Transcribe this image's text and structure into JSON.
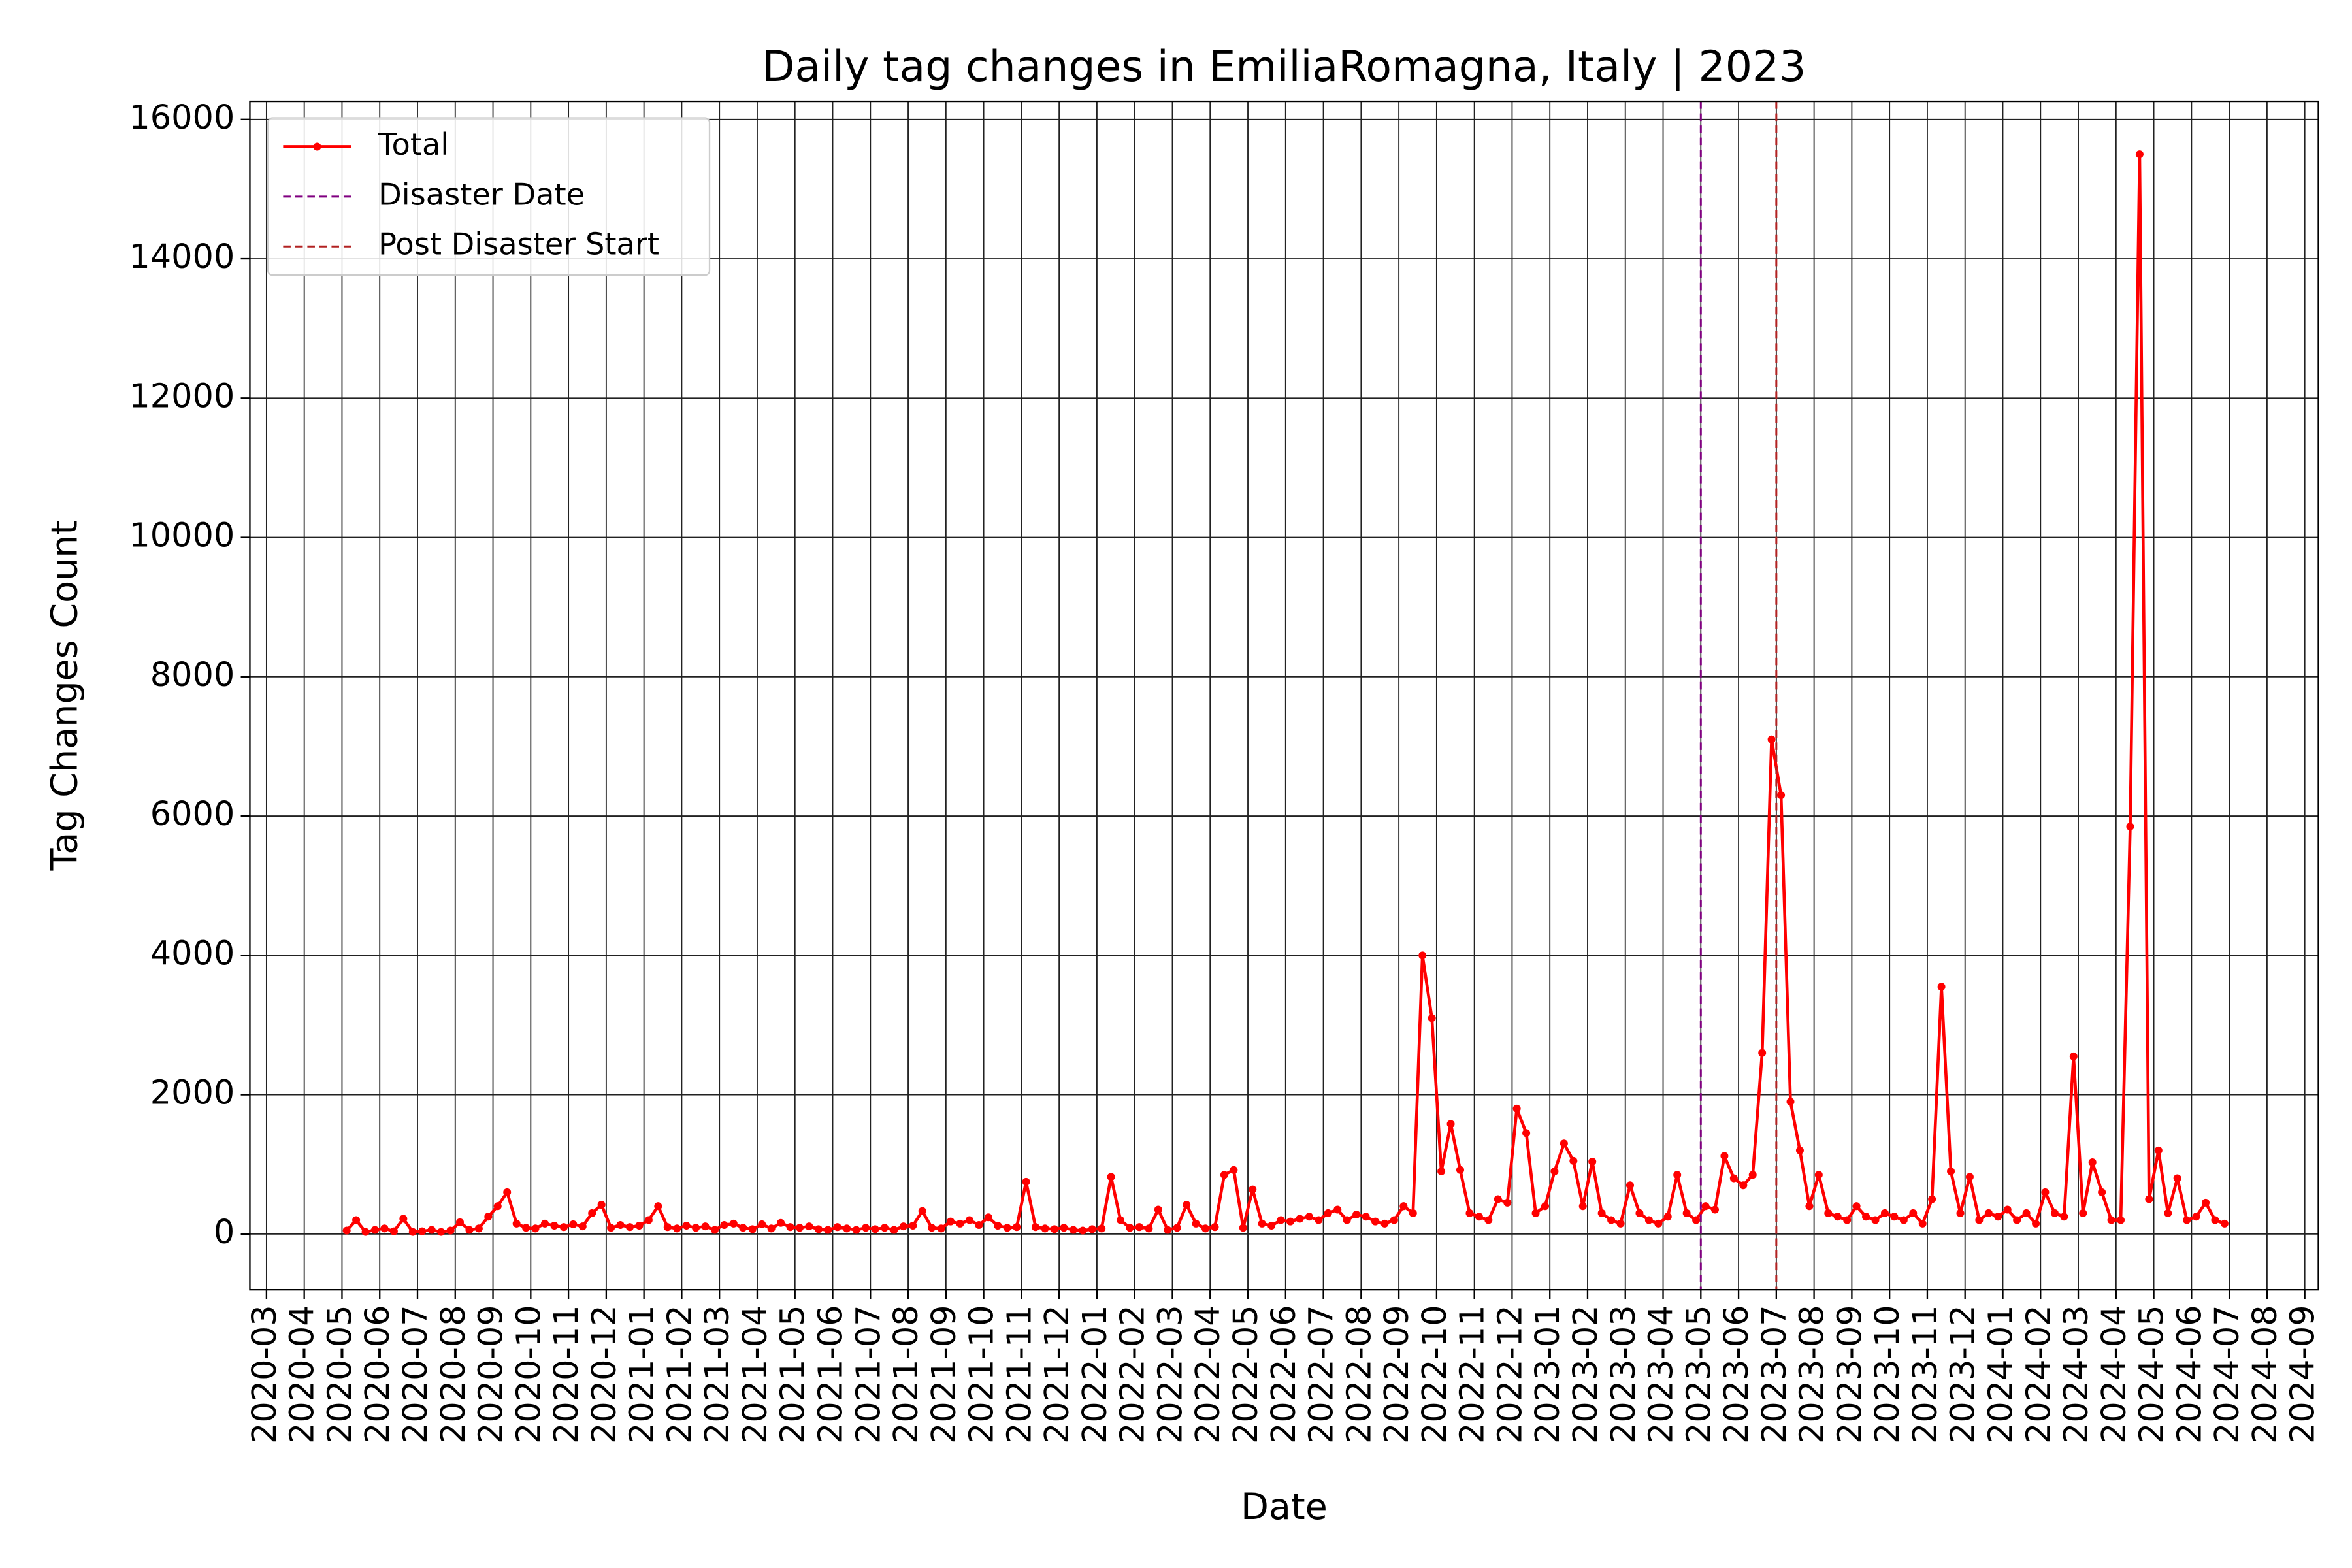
{
  "chart_data": {
    "type": "line",
    "title": "Daily tag changes in EmiliaRomagna, Italy | 2023",
    "x_label": "Date",
    "y_label": "Tag Changes Count",
    "x": [
      "2020-05",
      "2020-06",
      "2020-07",
      "2020-08",
      "2020-09",
      "2020-10",
      "2020-11",
      "2020-12",
      "2021-01",
      "2021-02",
      "2021-03",
      "2021-04",
      "2021-05",
      "2021-06",
      "2021-07",
      "2021-08",
      "2021-09",
      "2021-10",
      "2021-11",
      "2021-12",
      "2022-01",
      "2022-02",
      "2022-03",
      "2022-04",
      "2022-05",
      "2022-06",
      "2022-07",
      "2022-08",
      "2022-09",
      "2022-10",
      "2022-11",
      "2022-12",
      "2023-01",
      "2023-02",
      "2023-03",
      "2023-04",
      "2023-05",
      "2023-06",
      "2023-07",
      "2023-08",
      "2023-09",
      "2023-10",
      "2023-11",
      "2023-12",
      "2024-01",
      "2024-02",
      "2024-03",
      "2024-04",
      "2024-05",
      "2024-06"
    ],
    "series": [
      {
        "name": "Total",
        "color": "#ff0000",
        "values": [
          [
            50,
            200,
            30,
            60
          ],
          [
            80,
            40,
            220,
            30
          ],
          [
            40,
            60,
            30,
            50
          ],
          [
            170,
            60,
            80,
            250
          ],
          [
            400,
            600,
            150,
            90
          ],
          [
            80,
            150,
            120,
            100
          ],
          [
            140,
            110,
            300,
            420
          ],
          [
            90,
            130,
            100,
            120
          ],
          [
            200,
            400,
            100,
            80
          ],
          [
            120,
            90,
            110,
            60
          ],
          [
            130,
            150,
            90,
            70
          ],
          [
            140,
            80,
            160,
            100
          ],
          [
            90,
            110,
            70,
            60
          ],
          [
            100,
            80,
            60,
            90
          ],
          [
            70,
            90,
            60,
            110
          ],
          [
            120,
            330,
            90,
            80
          ],
          [
            180,
            150,
            200,
            130
          ],
          [
            240,
            120,
            90,
            100
          ],
          [
            750,
            100,
            80,
            70
          ],
          [
            90,
            60,
            50,
            70
          ],
          [
            80,
            820,
            200,
            90
          ],
          [
            100,
            80,
            350,
            60
          ],
          [
            90,
            420,
            150,
            80
          ],
          [
            100,
            850,
            920,
            90
          ],
          [
            640,
            150,
            120,
            200
          ],
          [
            180,
            220,
            250,
            200
          ],
          [
            300,
            350,
            200,
            280
          ],
          [
            250,
            180,
            150,
            200
          ],
          [
            400,
            300,
            4000,
            3100
          ],
          [
            900,
            1580,
            920,
            300
          ],
          [
            250,
            200,
            500,
            450
          ],
          [
            1800,
            1450,
            300,
            400
          ],
          [
            900,
            1300,
            1050,
            400
          ],
          [
            1040,
            300,
            200,
            150
          ],
          [
            700,
            300,
            200,
            150
          ],
          [
            250,
            850,
            300,
            200
          ],
          [
            400,
            350,
            1120,
            800
          ],
          [
            700,
            850,
            2600,
            7100
          ],
          [
            6300,
            1900,
            1200,
            400
          ],
          [
            850,
            300,
            250,
            200
          ],
          [
            400,
            250,
            200,
            300
          ],
          [
            250,
            200,
            300,
            150
          ],
          [
            500,
            3550,
            900,
            300
          ],
          [
            820,
            200,
            300,
            250
          ],
          [
            350,
            200,
            300,
            150
          ],
          [
            600,
            300,
            250,
            2550
          ],
          [
            300,
            1030,
            600,
            200
          ],
          [
            200,
            5850,
            15500,
            500
          ],
          [
            1200,
            300,
            800,
            200
          ],
          [
            250,
            450,
            200,
            150
          ]
        ]
      }
    ],
    "vlines": [
      {
        "name": "Disaster Date",
        "x": "2023-05",
        "color": "#800080"
      },
      {
        "name": "Post Disaster Start",
        "x": "2023-07",
        "color": "#b22222"
      }
    ],
    "xlim": [
      "2020-03",
      "2024-09"
    ],
    "xticks": [
      "2020-03",
      "2020-04",
      "2020-05",
      "2020-06",
      "2020-07",
      "2020-08",
      "2020-09",
      "2020-10",
      "2020-11",
      "2020-12",
      "2021-01",
      "2021-02",
      "2021-03",
      "2021-04",
      "2021-05",
      "2021-06",
      "2021-07",
      "2021-08",
      "2021-09",
      "2021-10",
      "2021-11",
      "2021-12",
      "2022-01",
      "2022-02",
      "2022-03",
      "2022-04",
      "2022-05",
      "2022-06",
      "2022-07",
      "2022-08",
      "2022-09",
      "2022-10",
      "2022-11",
      "2022-12",
      "2023-01",
      "2023-02",
      "2023-03",
      "2023-04",
      "2023-05",
      "2023-06",
      "2023-07",
      "2023-08",
      "2023-09",
      "2023-10",
      "2023-11",
      "2023-12",
      "2024-01",
      "2024-02",
      "2024-03",
      "2024-04",
      "2024-05",
      "2024-06",
      "2024-07",
      "2024-08",
      "2024-09"
    ],
    "ylim": [
      -800,
      16260
    ],
    "yticks": [
      0,
      2000,
      4000,
      6000,
      8000,
      10000,
      12000,
      14000,
      16000
    ],
    "grid": true,
    "legend": "upper left"
  }
}
